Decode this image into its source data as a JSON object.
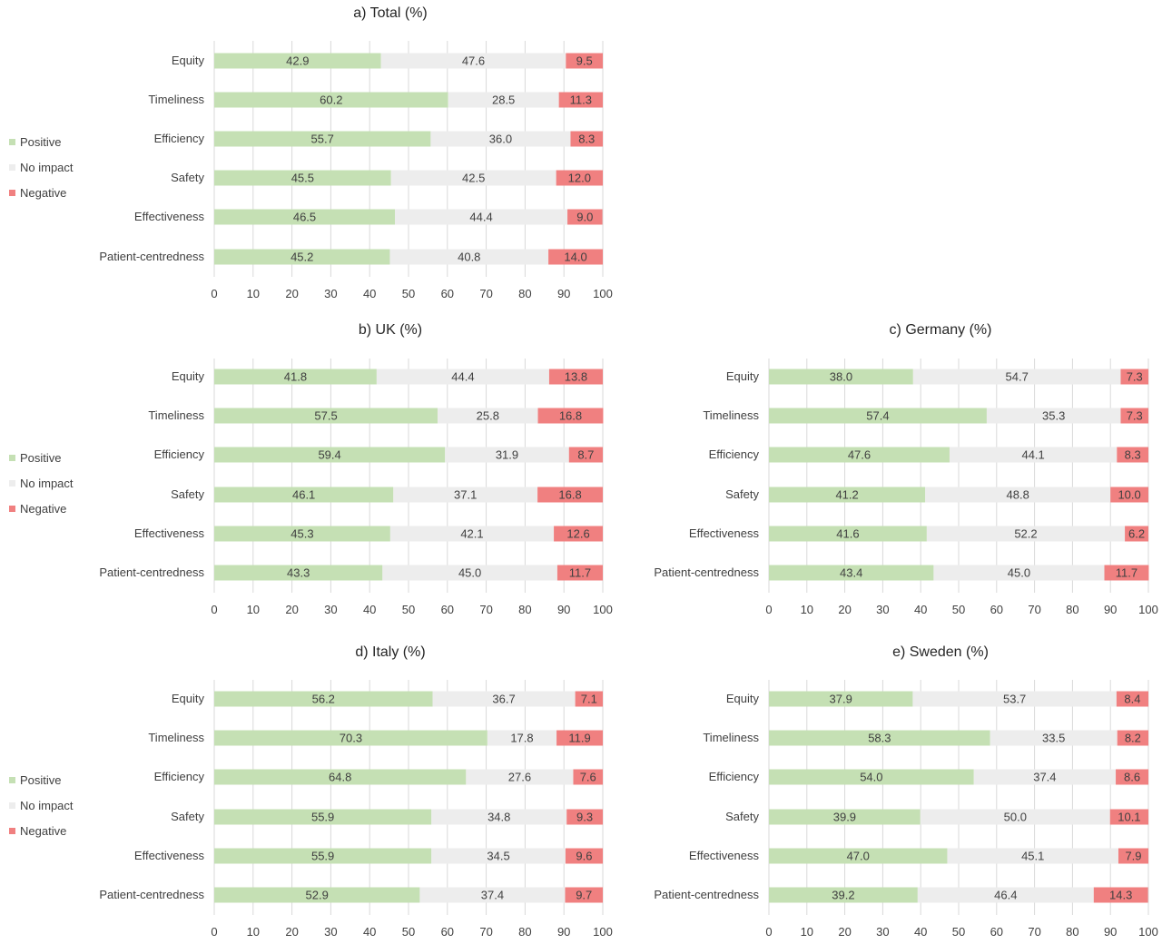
{
  "chart_data": [
    {
      "type": "bar",
      "orientation": "horizontal",
      "stacked": true,
      "title": "a) Total (%)",
      "categories": [
        "Equity",
        "Timeliness",
        "Efficiency",
        "Safety",
        "Effectiveness",
        "Patient-centredness"
      ],
      "series": [
        {
          "name": "Positive",
          "color": "#c5e0b4",
          "values": [
            42.9,
            60.2,
            55.7,
            45.5,
            46.5,
            45.2
          ]
        },
        {
          "name": "No impact",
          "color": "#ededed",
          "values": [
            47.6,
            28.5,
            36.0,
            42.5,
            44.4,
            40.8
          ]
        },
        {
          "name": "Negative",
          "color": "#f08080",
          "values": [
            9.5,
            11.3,
            8.3,
            12.0,
            9.0,
            14.0
          ]
        }
      ],
      "xlim": [
        0,
        100
      ],
      "xticks": [
        0,
        10,
        20,
        30,
        40,
        50,
        60,
        70,
        80,
        90,
        100
      ],
      "legend": "left",
      "grid": false
    },
    {
      "type": "bar",
      "orientation": "horizontal",
      "stacked": true,
      "title": "b) UK (%)",
      "categories": [
        "Equity",
        "Timeliness",
        "Efficiency",
        "Safety",
        "Effectiveness",
        "Patient-centredness"
      ],
      "series": [
        {
          "name": "Positive",
          "color": "#c5e0b4",
          "values": [
            41.8,
            57.5,
            59.4,
            46.1,
            45.3,
            43.3
          ]
        },
        {
          "name": "No impact",
          "color": "#ededed",
          "values": [
            44.4,
            25.8,
            31.9,
            37.1,
            42.1,
            45.0
          ]
        },
        {
          "name": "Negative",
          "color": "#f08080",
          "values": [
            13.8,
            16.8,
            8.7,
            16.8,
            12.6,
            11.7
          ]
        }
      ],
      "xlim": [
        0,
        100
      ],
      "xticks": [
        0,
        10,
        20,
        30,
        40,
        50,
        60,
        70,
        80,
        90,
        100
      ],
      "legend": "left",
      "grid": false
    },
    {
      "type": "bar",
      "orientation": "horizontal",
      "stacked": true,
      "title": "c) Germany (%)",
      "categories": [
        "Equity",
        "Timeliness",
        "Efficiency",
        "Safety",
        "Effectiveness",
        "Patient-centredness"
      ],
      "series": [
        {
          "name": "Positive",
          "color": "#c5e0b4",
          "values": [
            38.0,
            57.4,
            47.6,
            41.2,
            41.6,
            43.4
          ]
        },
        {
          "name": "No impact",
          "color": "#ededed",
          "values": [
            54.7,
            35.3,
            44.1,
            48.8,
            52.2,
            45.0
          ]
        },
        {
          "name": "Negative",
          "color": "#f08080",
          "values": [
            7.3,
            7.3,
            8.3,
            10.0,
            6.2,
            11.7
          ]
        }
      ],
      "xlim": [
        0,
        100
      ],
      "xticks": [
        0,
        10,
        20,
        30,
        40,
        50,
        60,
        70,
        80,
        90,
        100
      ],
      "legend": "none",
      "grid": false
    },
    {
      "type": "bar",
      "orientation": "horizontal",
      "stacked": true,
      "title": "d) Italy (%)",
      "categories": [
        "Equity",
        "Timeliness",
        "Efficiency",
        "Safety",
        "Effectiveness",
        "Patient-centredness"
      ],
      "series": [
        {
          "name": "Positive",
          "color": "#c5e0b4",
          "values": [
            56.2,
            70.3,
            64.8,
            55.9,
            55.9,
            52.9
          ]
        },
        {
          "name": "No impact",
          "color": "#ededed",
          "values": [
            36.7,
            17.8,
            27.6,
            34.8,
            34.5,
            37.4
          ]
        },
        {
          "name": "Negative",
          "color": "#f08080",
          "values": [
            7.1,
            11.9,
            7.6,
            9.3,
            9.6,
            9.7
          ]
        }
      ],
      "xlim": [
        0,
        100
      ],
      "xticks": [
        0,
        10,
        20,
        30,
        40,
        50,
        60,
        70,
        80,
        90,
        100
      ],
      "legend": "left",
      "grid": false
    },
    {
      "type": "bar",
      "orientation": "horizontal",
      "stacked": true,
      "title": "e) Sweden (%)",
      "categories": [
        "Equity",
        "Timeliness",
        "Efficiency",
        "Safety",
        "Effectiveness",
        "Patient-centredness"
      ],
      "series": [
        {
          "name": "Positive",
          "color": "#c5e0b4",
          "values": [
            37.9,
            58.3,
            54.0,
            39.9,
            47.0,
            39.2
          ]
        },
        {
          "name": "No impact",
          "color": "#ededed",
          "values": [
            53.7,
            33.5,
            37.4,
            50.0,
            45.1,
            46.4
          ]
        },
        {
          "name": "Negative",
          "color": "#f08080",
          "values": [
            8.4,
            8.2,
            8.6,
            10.1,
            7.9,
            14.3
          ]
        }
      ],
      "xlim": [
        0,
        100
      ],
      "xticks": [
        0,
        10,
        20,
        30,
        40,
        50,
        60,
        70,
        80,
        90,
        100
      ],
      "legend": "none",
      "grid": false
    }
  ]
}
